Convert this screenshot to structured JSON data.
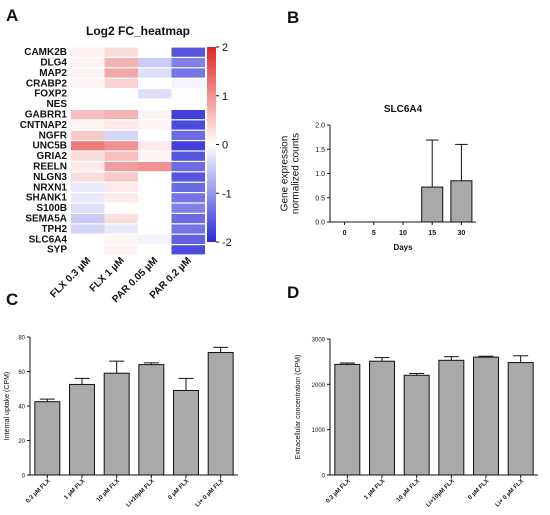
{
  "panels": {
    "A": "A",
    "B": "B",
    "C": "C",
    "D": "D"
  },
  "chart_data": [
    {
      "type": "heatmap",
      "title": "Log2 FC_heatmap",
      "rows": [
        "CAMK2B",
        "DLG4",
        "MAP2",
        "CRABP2",
        "FOXP2",
        "NES",
        "GABRR1",
        "CNTNAP2",
        "NGFR",
        "UNC5B",
        "GRIA2",
        "REELN",
        "NLGN3",
        "NRXN1",
        "SHANK1",
        "S100B",
        "SEMA5A",
        "TPH2",
        "SLC6A4",
        "SYP"
      ],
      "columns": [
        "FLX 0.3 µM",
        "FLX 1 µM",
        "PAR 0.05 µM",
        "PAR 0.2 µM"
      ],
      "values": [
        [
          0.15,
          0.3,
          0.0,
          -1.6
        ],
        [
          0.1,
          0.7,
          -0.5,
          -1.2
        ],
        [
          0.1,
          0.8,
          -0.3,
          -1.3
        ],
        [
          0.1,
          0.4,
          0.0,
          -0.1
        ],
        [
          0.0,
          0.0,
          -0.3,
          0.0
        ],
        [
          0.0,
          0.0,
          0.0,
          0.0
        ],
        [
          0.6,
          0.7,
          0.1,
          -1.8
        ],
        [
          0.1,
          0.2,
          0.1,
          -1.7
        ],
        [
          0.5,
          -0.4,
          0.0,
          -1.4
        ],
        [
          1.2,
          1.0,
          0.2,
          -1.8
        ],
        [
          0.3,
          0.6,
          0.1,
          -1.6
        ],
        [
          0.2,
          0.9,
          1.0,
          -1.4
        ],
        [
          0.3,
          0.5,
          0.0,
          -1.6
        ],
        [
          -0.2,
          0.2,
          0.0,
          -1.4
        ],
        [
          -0.2,
          0.2,
          0.0,
          -1.3
        ],
        [
          -0.3,
          0.0,
          0.0,
          -1.2
        ],
        [
          -0.5,
          0.3,
          0.0,
          -1.4
        ],
        [
          -0.4,
          -0.2,
          0.0,
          -1.3
        ],
        [
          0.0,
          0.1,
          -0.1,
          -1.5
        ],
        [
          0.0,
          0.1,
          0.0,
          -1.7
        ]
      ],
      "colorbar": {
        "min": -2,
        "max": 2,
        "ticks": [
          "2",
          "1",
          "0",
          "-1",
          "-2"
        ],
        "low_color": "#2b2bd6",
        "mid_color": "#ffffff",
        "high_color": "#e02525"
      }
    },
    {
      "type": "bar",
      "title": "SLC6A4",
      "xlabel": "Days",
      "ylabel": "Gene expression\nnormalized counts",
      "categories": [
        "0",
        "5",
        "10",
        "15",
        "30"
      ],
      "values": [
        0,
        0,
        0,
        0.72,
        0.85
      ],
      "errors": [
        0,
        0,
        0,
        0.97,
        0.75
      ],
      "ylim": [
        0,
        2.0
      ],
      "yticks": [
        "0.0",
        "0.5",
        "1.0",
        "1.5",
        "2.0"
      ],
      "bar_color": "#a9a9a9"
    },
    {
      "type": "bar",
      "title": "",
      "xlabel": "",
      "ylabel": "Internal uptake (CPM)",
      "categories": [
        "0.3 µM FLX",
        "1 µM FLX",
        "10 µM FLX",
        "Li+10µM FLX",
        "0 µM FLX",
        "Li+ 0 µM FLX"
      ],
      "values": [
        42.5,
        52.5,
        59,
        64,
        49,
        71
      ],
      "errors": [
        1.5,
        3.5,
        7,
        1,
        7,
        3
      ],
      "ylim": [
        0,
        80
      ],
      "yticks": [
        "0",
        "20",
        "40",
        "60",
        "80"
      ],
      "bar_color": "#a9a9a9"
    },
    {
      "type": "bar",
      "title": "",
      "xlabel": "",
      "ylabel": "Extracellular concentration (CPM)",
      "categories": [
        "0.3 µM FLX",
        "1 µM FLX",
        "10 µM FLX",
        "Li+10µM FLX",
        "0 µM FLX",
        "Li+ 0 µM FLX"
      ],
      "values": [
        2440,
        2510,
        2200,
        2530,
        2600,
        2480
      ],
      "errors": [
        30,
        80,
        40,
        80,
        20,
        150
      ],
      "ylim": [
        0,
        3000
      ],
      "yticks": [
        "0",
        "1000",
        "2000",
        "3000"
      ],
      "bar_color": "#a9a9a9"
    }
  ]
}
